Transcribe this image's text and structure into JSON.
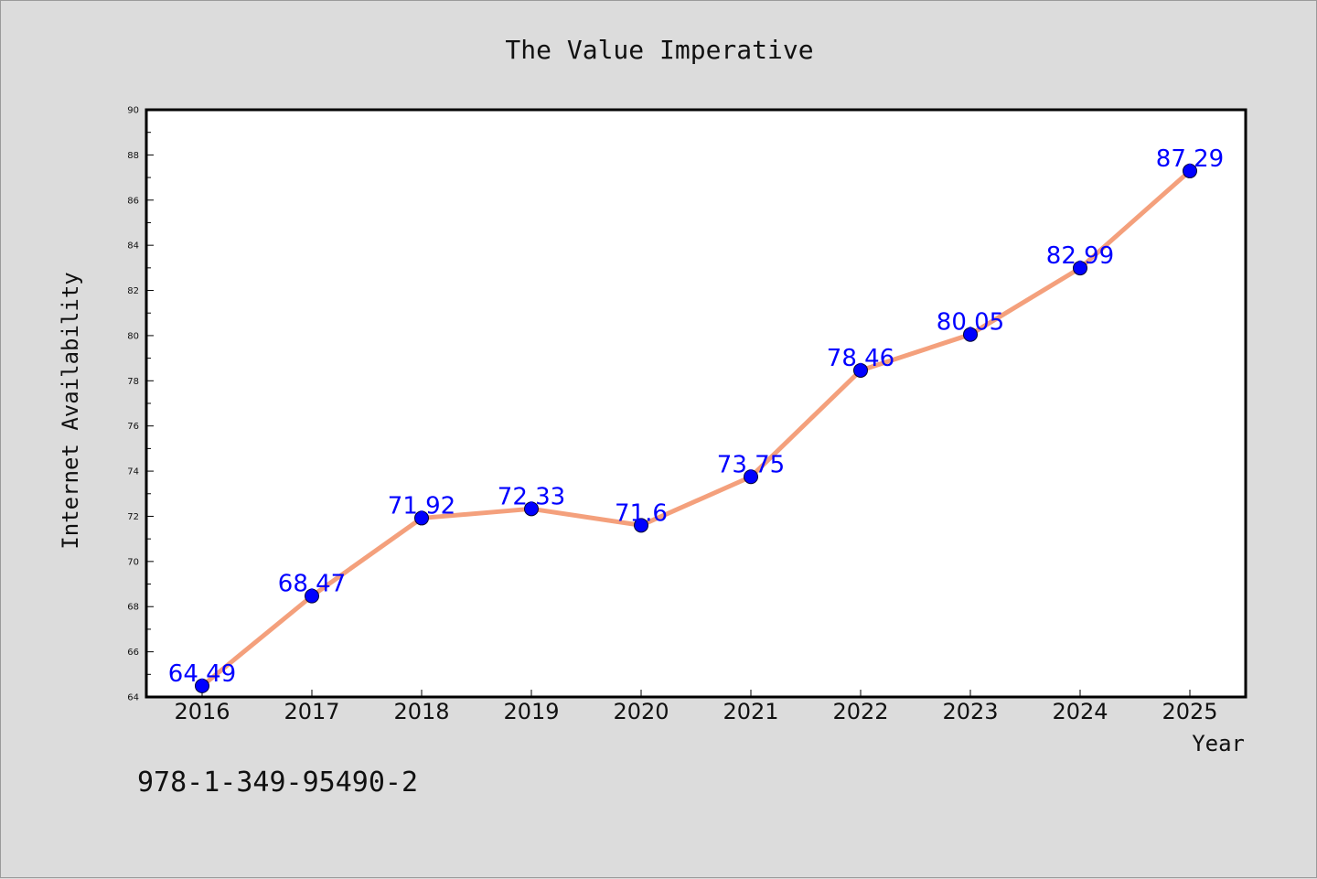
{
  "chart_data": {
    "type": "line",
    "title": "The Value Imperative",
    "xlabel": "Year",
    "ylabel": "Internet Availability",
    "x": [
      "2016",
      "2017",
      "2018",
      "2019",
      "2020",
      "2021",
      "2022",
      "2023",
      "2024",
      "2025"
    ],
    "series": [
      {
        "values": [
          64.49,
          68.47,
          71.92,
          72.33,
          71.6,
          73.75,
          78.46,
          80.05,
          82.99,
          87.29
        ],
        "labels": [
          "64.49",
          "68.47",
          "71.92",
          "72.33",
          "71.6",
          "73.75",
          "78.46",
          "80.05",
          "82.99",
          "87.29"
        ]
      }
    ],
    "ylim": [
      64,
      90
    ],
    "yticks": [
      64,
      66,
      68,
      70,
      72,
      74,
      76,
      78,
      80,
      82,
      84,
      86,
      88,
      90
    ],
    "grid": false,
    "legend": "none"
  },
  "footer": {
    "isbn": "978-1-349-95490-2"
  },
  "colors": {
    "background": "#dcdcdc",
    "plot_background": "#ffffff",
    "line": "#f4a07c",
    "marker": "#0000ff",
    "data_label": "#0000ff"
  }
}
